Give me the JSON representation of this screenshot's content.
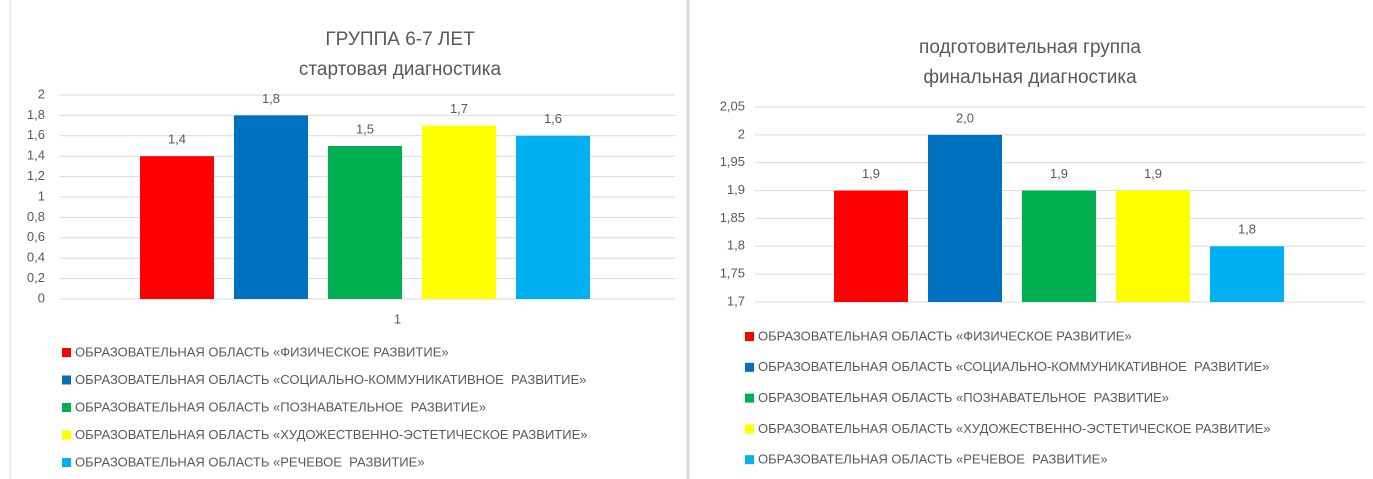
{
  "chart_data": [
    {
      "type": "bar",
      "title": "ГРУППА 6-7 ЛЕТ",
      "subtitle": "стартовая диагностика",
      "categories": [
        "1"
      ],
      "series": [
        {
          "name": "ОБРАЗОВАТЕЛЬНАЯ ОБЛАСТЬ «ФИЗИЧЕСКОЕ РАЗВИТИЕ»",
          "color": "#ff0000",
          "values": [
            1.4
          ],
          "value_labels": [
            "1,4"
          ]
        },
        {
          "name": "ОБРАЗОВАТЕЛЬНАЯ ОБЛАСТЬ «СОЦИАЛЬНО-КОММУНИКАТИВНОЕ  РАЗВИТИЕ»",
          "color": "#0070c0",
          "values": [
            1.8
          ],
          "value_labels": [
            "1,8"
          ]
        },
        {
          "name": "ОБРАЗОВАТЕЛЬНАЯ ОБЛАСТЬ «ПОЗНАВАТЕЛЬНОЕ  РАЗВИТИЕ»",
          "color": "#00b050",
          "values": [
            1.5
          ],
          "value_labels": [
            "1,5"
          ]
        },
        {
          "name": "ОБРАЗОВАТЕЛЬНАЯ ОБЛАСТЬ «ХУДОЖЕСТВЕННО-ЭСТЕТИЧЕСКОЕ РАЗВИТИЕ»",
          "color": "#ffff00",
          "values": [
            1.7
          ],
          "value_labels": [
            "1,7"
          ]
        },
        {
          "name": "ОБРАЗОВАТЕЛЬНАЯ ОБЛАСТЬ «РЕЧЕВОЕ  РАЗВИТИЕ»",
          "color": "#00b0f0",
          "values": [
            1.6
          ],
          "value_labels": [
            "1,6"
          ]
        }
      ],
      "ylim": [
        0,
        2
      ],
      "yticks": [
        0,
        {
          "value": 0.2,
          "label": "0,2"
        },
        {
          "value": 0.4,
          "label": "0,4"
        },
        {
          "value": 0.6,
          "label": "0,6"
        },
        {
          "value": 0.8,
          "label": "0,8"
        },
        1,
        {
          "value": 1.2,
          "label": "1,2"
        },
        {
          "value": 1.4,
          "label": "1,4"
        },
        {
          "value": 1.6,
          "label": "1,6"
        },
        {
          "value": 1.8,
          "label": "1,8"
        },
        2
      ],
      "grid": true,
      "legend": "bottom"
    },
    {
      "type": "bar",
      "title": "подготовительная группа",
      "subtitle": "финальная диагностика",
      "categories": [
        null
      ],
      "series": [
        {
          "name": "ОБРАЗОВАТЕЛЬНАЯ ОБЛАСТЬ «ФИЗИЧЕСКОЕ РАЗВИТИЕ»",
          "color": "#ff0000",
          "values": [
            1.9
          ],
          "value_labels": [
            "1,9"
          ]
        },
        {
          "name": "ОБРАЗОВАТЕЛЬНАЯ ОБЛАСТЬ «СОЦИАЛЬНО-КОММУНИКАТИВНОЕ  РАЗВИТИЕ»",
          "color": "#0070c0",
          "values": [
            2.0
          ],
          "value_labels": [
            "2,0"
          ]
        },
        {
          "name": "ОБРАЗОВАТЕЛЬНАЯ ОБЛАСТЬ «ПОЗНАВАТЕЛЬНОЕ  РАЗВИТИЕ»",
          "color": "#00b050",
          "values": [
            1.9
          ],
          "value_labels": [
            "1,9"
          ]
        },
        {
          "name": "ОБРАЗОВАТЕЛЬНАЯ ОБЛАСТЬ «ХУДОЖЕСТВЕННО-ЭСТЕТИЧЕСКОЕ РАЗВИТИЕ»",
          "color": "#ffff00",
          "values": [
            1.9
          ],
          "value_labels": [
            "1,9"
          ]
        },
        {
          "name": "ОБРАЗОВАТЕЛЬНАЯ ОБЛАСТЬ «РЕЧЕВОЕ  РАЗВИТИЕ»",
          "color": "#00b0f0",
          "values": [
            1.8
          ],
          "value_labels": [
            "1,8"
          ]
        }
      ],
      "ylim": [
        1.7,
        2.05
      ],
      "yticks": [
        {
          "value": 1.7,
          "label": "1,7"
        },
        {
          "value": 1.75,
          "label": "1,75"
        },
        {
          "value": 1.8,
          "label": "1,8"
        },
        {
          "value": 1.85,
          "label": "1,85"
        },
        {
          "value": 1.9,
          "label": "1,9"
        },
        {
          "value": 1.95,
          "label": "1,95"
        },
        2,
        {
          "value": 2.05,
          "label": "2,05"
        }
      ],
      "grid": true,
      "legend": "bottom"
    }
  ]
}
